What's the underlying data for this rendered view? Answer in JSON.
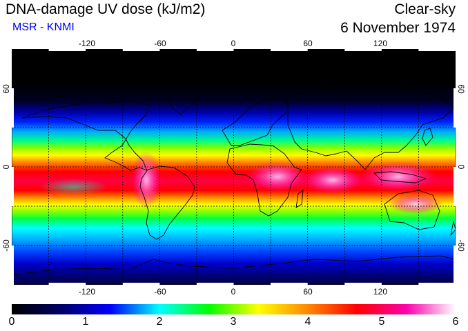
{
  "header": {
    "title": "DNA-damage UV dose (kJ/m2)",
    "subtitle": "MSR - KNMI",
    "condition": "Clear-sky",
    "date": "6 November 1974"
  },
  "map": {
    "lon_range": [
      -180,
      180
    ],
    "lat_range": [
      -90,
      90
    ],
    "lon_ticks": [
      {
        "value": -120,
        "label": "-120"
      },
      {
        "value": -60,
        "label": "-60"
      },
      {
        "value": 0,
        "label": "0"
      },
      {
        "value": 60,
        "label": "60"
      },
      {
        "value": 120,
        "label": "120"
      }
    ],
    "lat_ticks": [
      {
        "value": 60,
        "label": "60"
      },
      {
        "value": 0,
        "label": "0"
      },
      {
        "value": -60,
        "label": "-60"
      }
    ],
    "gridlines": "dashed every 30 degrees"
  },
  "colorbar": {
    "min": 0,
    "max": 6,
    "labels": [
      "0",
      "1",
      "2",
      "3",
      "4",
      "5",
      "6"
    ],
    "stops": [
      "#000000",
      "#000066",
      "#0000ff",
      "#00ffff",
      "#00ff00",
      "#ffff00",
      "#ff8800",
      "#ff0000",
      "#ff00aa",
      "#ffffff"
    ]
  }
}
